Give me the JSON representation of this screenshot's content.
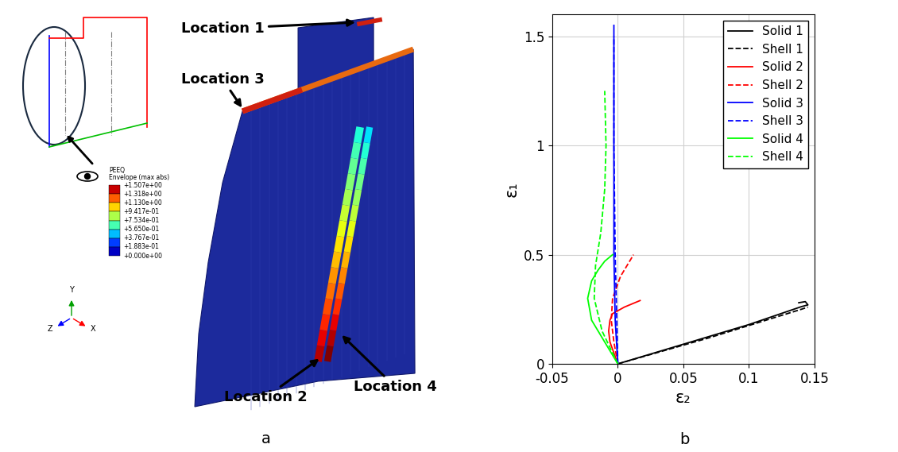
{
  "panel_labels": [
    "a",
    "b"
  ],
  "model_view": {
    "locations": [
      "Location 1",
      "Location 3",
      "Location 2",
      "Location 4"
    ],
    "contour": {
      "title": "PEEQ",
      "subtitle": "Envelope (max abs)",
      "ticks": [
        {
          "value": 1.507,
          "label": "+1.507e+00"
        },
        {
          "value": 1.318,
          "label": "+1.318e+00"
        },
        {
          "value": 1.13,
          "label": "+1.130e+00"
        },
        {
          "value": 0.9417,
          "label": "+9.417e-01"
        },
        {
          "value": 0.7534,
          "label": "+7.534e-01"
        },
        {
          "value": 0.565,
          "label": "+5.650e-01"
        },
        {
          "value": 0.3767,
          "label": "+3.767e-01"
        },
        {
          "value": 0.1883,
          "label": "+1.883e-01"
        },
        {
          "value": 0.0,
          "label": "+0.000e+00"
        }
      ]
    },
    "triad": [
      "Y",
      "Z",
      "X"
    ]
  },
  "chart_data": {
    "type": "line",
    "xlabel": "ε₂",
    "ylabel": "ε₁",
    "xlim": [
      -0.05,
      0.15
    ],
    "xticks": [
      -0.05,
      0,
      0.05,
      0.1,
      0.15
    ],
    "ylim": [
      0,
      1.6
    ],
    "yticks": [
      0,
      0.5,
      1,
      1.5
    ],
    "grid": true,
    "legend": "upper right",
    "series": [
      {
        "name": "Solid 1",
        "color": "#000000",
        "line_style": "solid",
        "x": [
          0,
          0.05,
          0.1,
          0.14,
          0.145,
          0.143,
          0.138
        ],
        "values": [
          0,
          0.09,
          0.18,
          0.262,
          0.27,
          0.285,
          0.28
        ]
      },
      {
        "name": "Shell 1",
        "color": "#000000",
        "line_style": "dashed",
        "x": [
          0,
          0.07,
          0.14,
          0.145
        ],
        "values": [
          0,
          0.12,
          0.25,
          0.26
        ]
      },
      {
        "name": "Solid 2",
        "color": "#ff0000",
        "line_style": "solid",
        "x": [
          0,
          -0.003,
          -0.006,
          -0.007,
          -0.006,
          -0.004,
          0.005,
          0.017
        ],
        "values": [
          0,
          0.05,
          0.1,
          0.15,
          0.2,
          0.23,
          0.26,
          0.29
        ]
      },
      {
        "name": "Shell 2",
        "color": "#ff0000",
        "line_style": "dashed",
        "x": [
          0,
          -0.003,
          -0.005,
          -0.004,
          0.002,
          0.012
        ],
        "values": [
          0,
          0.1,
          0.2,
          0.3,
          0.4,
          0.5
        ]
      },
      {
        "name": "Solid 3",
        "color": "#0000ff",
        "line_style": "solid",
        "x": [
          0,
          -0.002,
          -0.003,
          -0.003,
          -0.003
        ],
        "values": [
          0,
          0.2,
          0.5,
          1.0,
          1.55
        ]
      },
      {
        "name": "Shell 3",
        "color": "#0000ff",
        "line_style": "dashed",
        "x": [
          0,
          -0.002,
          -0.003,
          -0.003
        ],
        "values": [
          0,
          0.5,
          1.0,
          1.5
        ]
      },
      {
        "name": "Solid 4",
        "color": "#00ff00",
        "line_style": "solid",
        "x": [
          0,
          -0.01,
          -0.02,
          -0.023,
          -0.02,
          -0.015,
          -0.01,
          -0.004
        ],
        "values": [
          0,
          0.1,
          0.2,
          0.3,
          0.38,
          0.43,
          0.47,
          0.5
        ]
      },
      {
        "name": "Shell 4",
        "color": "#00ff00",
        "line_style": "dashed",
        "x": [
          0,
          -0.012,
          -0.018,
          -0.017,
          -0.013,
          -0.01,
          -0.009,
          -0.01
        ],
        "values": [
          0,
          0.15,
          0.3,
          0.45,
          0.6,
          0.8,
          1.0,
          1.25
        ]
      }
    ]
  }
}
